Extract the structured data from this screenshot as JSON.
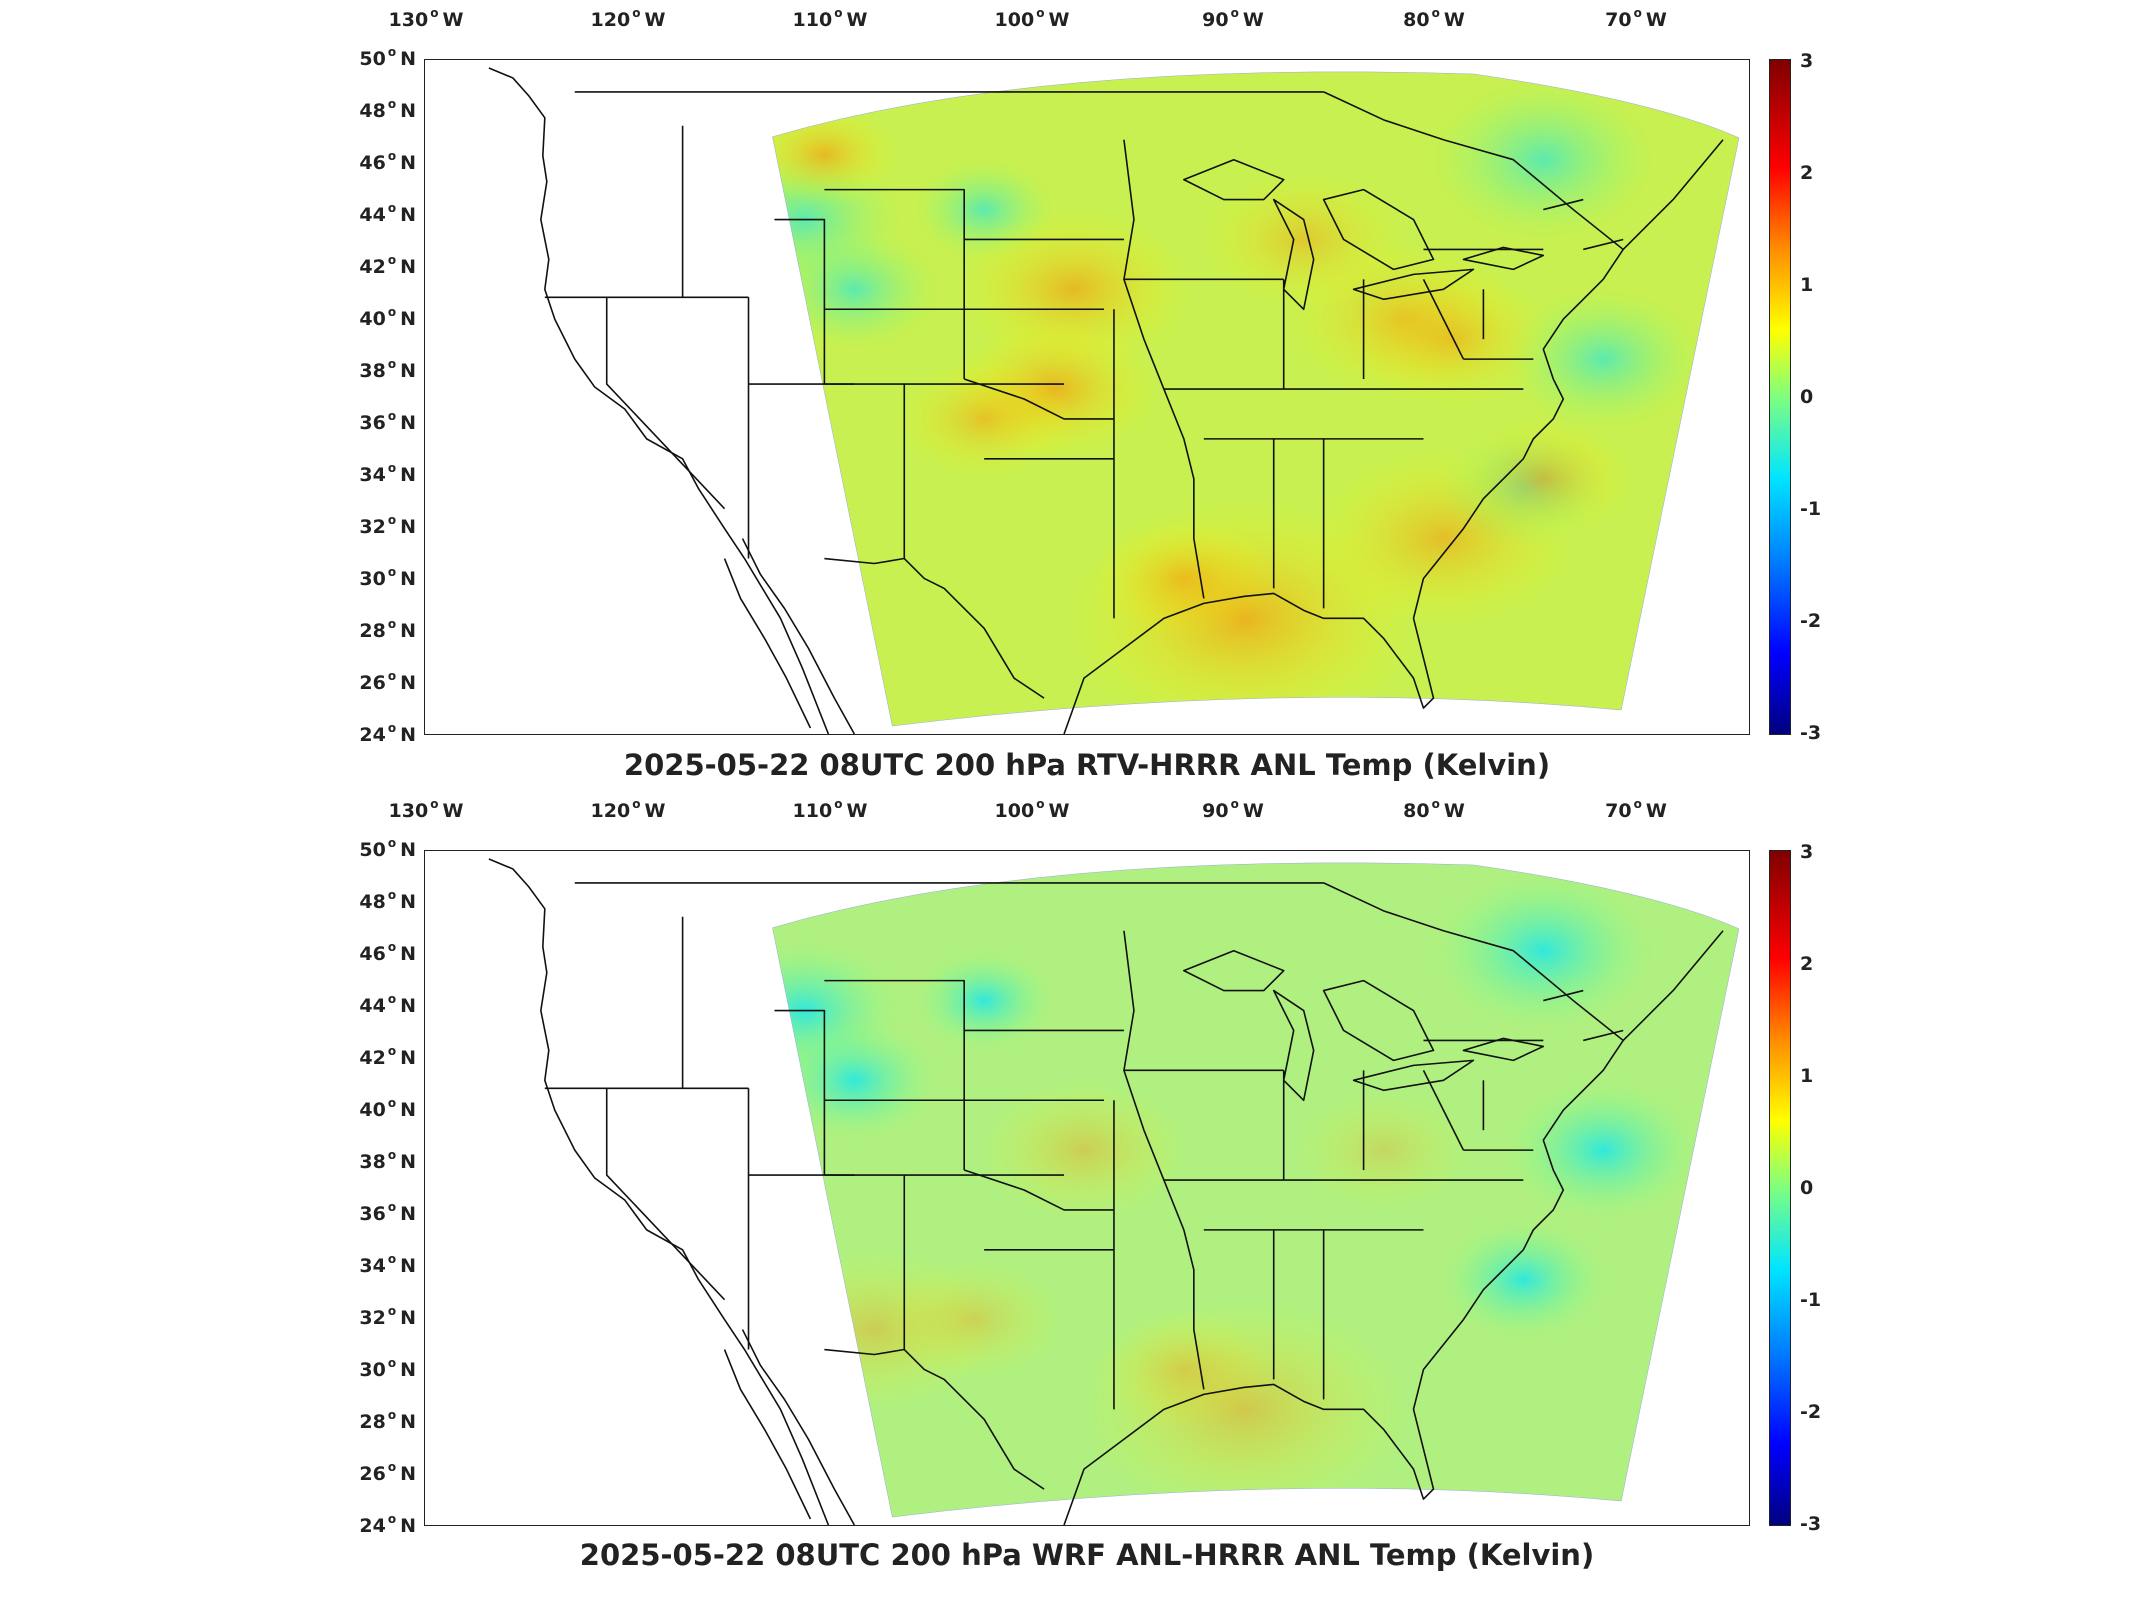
{
  "panels": [
    {
      "title": "2025-05-22 08UTC 200 hPa RTV-HRRR ANL Temp (Kelvin)",
      "field_tint": "warm",
      "colorbar_ticks": [
        "3",
        "2",
        "1",
        "0",
        "-1",
        "-2",
        "-3"
      ]
    },
    {
      "title": "2025-05-22 08UTC 200 hPa WRF ANL-HRRR ANL Temp (Kelvin)",
      "field_tint": "neutral",
      "colorbar_ticks": [
        "3",
        "2",
        "1",
        "0",
        "-1",
        "-2",
        "-3"
      ]
    }
  ],
  "lon_labels": [
    {
      "deg": "130",
      "hemi": "W"
    },
    {
      "deg": "120",
      "hemi": "W"
    },
    {
      "deg": "110",
      "hemi": "W"
    },
    {
      "deg": "100",
      "hemi": "W"
    },
    {
      "deg": "90",
      "hemi": "W"
    },
    {
      "deg": "80",
      "hemi": "W"
    },
    {
      "deg": "70",
      "hemi": "W"
    }
  ],
  "lat_labels": [
    {
      "deg": "50",
      "hemi": "N"
    },
    {
      "deg": "48",
      "hemi": "N"
    },
    {
      "deg": "46",
      "hemi": "N"
    },
    {
      "deg": "44",
      "hemi": "N"
    },
    {
      "deg": "42",
      "hemi": "N"
    },
    {
      "deg": "40",
      "hemi": "N"
    },
    {
      "deg": "38",
      "hemi": "N"
    },
    {
      "deg": "36",
      "hemi": "N"
    },
    {
      "deg": "34",
      "hemi": "N"
    },
    {
      "deg": "32",
      "hemi": "N"
    },
    {
      "deg": "30",
      "hemi": "N"
    },
    {
      "deg": "28",
      "hemi": "N"
    },
    {
      "deg": "26",
      "hemi": "N"
    },
    {
      "deg": "24",
      "hemi": "N"
    }
  ],
  "colorbar": {
    "min": -3,
    "max": 3,
    "colors": [
      "#7f0000",
      "#ff0000",
      "#ff8c00",
      "#ffff00",
      "#7fff7f",
      "#00e5ff",
      "#0080ff",
      "#0000ff",
      "#00007f"
    ]
  }
}
